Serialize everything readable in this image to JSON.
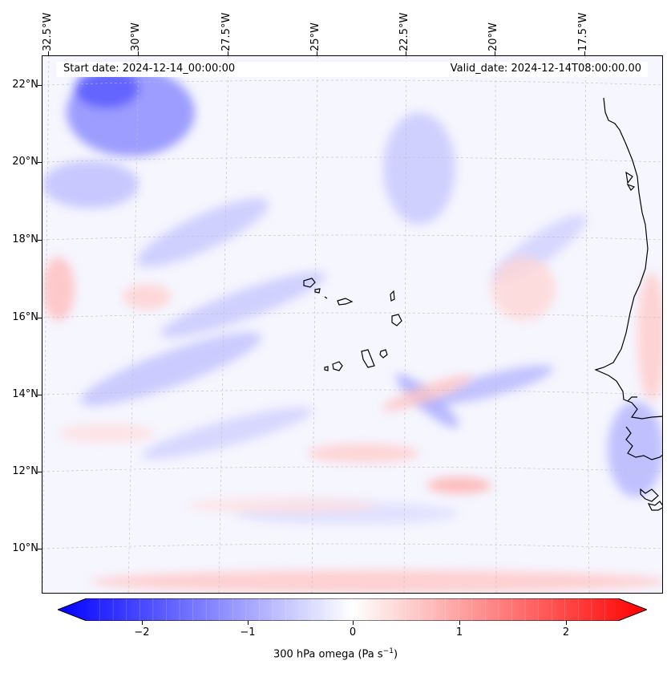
{
  "figure": {
    "start_label": "Start date: 2024-12-14_00:00:00",
    "valid_label": "Valid_date: 2024-12-14T08:00:00.00"
  },
  "map": {
    "longitude_labels": [
      "32.5°W",
      "30°W",
      "27.5°W",
      "25°W",
      "22.5°W",
      "20°W",
      "17.5°W"
    ],
    "latitude_labels": [
      "22°N",
      "20°N",
      "18°N",
      "16°N",
      "14°N",
      "12°N",
      "10°N"
    ],
    "features": [
      "Cape Verde islands",
      "West African coastline (Senegal, Gambia, Guinea-Bissau, Mauritania)"
    ]
  },
  "colorbar": {
    "ticks": [
      "−2",
      "−1",
      "0",
      "1",
      "2"
    ],
    "tick_values": [
      -2,
      -1,
      0,
      1,
      2
    ],
    "range": [
      -2.7,
      2.7
    ],
    "colormap": "bwr",
    "low_color": "#0000ff",
    "mid_color": "#ffffff",
    "high_color": "#ff0000",
    "title_text": "300 hPa omega (Pa s",
    "title_exponent": "−1",
    "title_close": ")"
  }
}
